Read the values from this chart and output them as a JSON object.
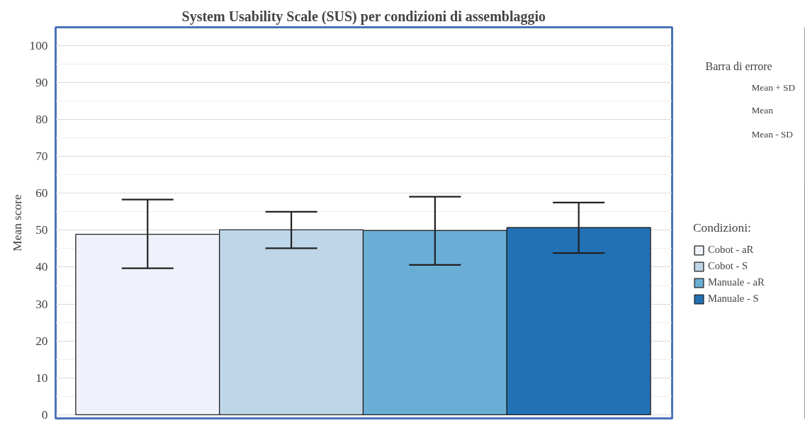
{
  "chart_data": {
    "type": "bar",
    "title": "System Usability Scale (SUS) per condizioni di assemblaggio",
    "ylabel": "Mean score",
    "legend_title": "Condizioni:",
    "categories": [
      null
    ],
    "series": [
      {
        "name": "Cobot - aR",
        "color": "#eff2fb",
        "values": [
          48.9
        ],
        "errors": [
          [
            39.7,
            58.3
          ]
        ]
      },
      {
        "name": "Cobot - S",
        "color": "#bfd6e9",
        "values": [
          50.1
        ],
        "errors": [
          [
            45.1,
            55.0
          ]
        ]
      },
      {
        "name": "Manuale - aR",
        "color": "#6aaed6",
        "values": [
          49.9
        ],
        "errors": [
          [
            40.6,
            59.1
          ]
        ]
      },
      {
        "name": "Manuale - S",
        "color": "#2271b5",
        "values": [
          50.7
        ],
        "errors": [
          [
            43.8,
            57.5
          ]
        ]
      }
    ],
    "ylim": [
      -1,
      105
    ],
    "yticks": [
      0,
      10,
      20,
      30,
      40,
      50,
      60,
      70,
      80,
      90,
      100
    ],
    "grid": "y",
    "legend": "right",
    "annotations": [
      "Barra di errore",
      "Mean + SD",
      "Mean",
      "Mean - SD"
    ]
  }
}
